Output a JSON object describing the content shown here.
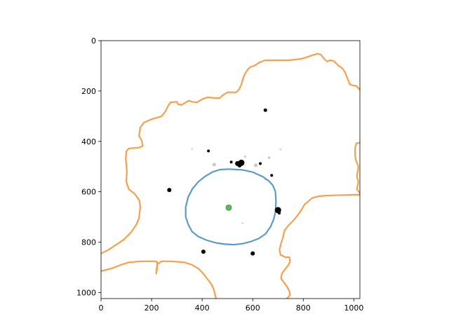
{
  "chart_data": {
    "type": "scatter",
    "title": "",
    "xlabel": "",
    "ylabel": "",
    "xlim": [
      0,
      1024
    ],
    "ylim": [
      1024,
      0
    ],
    "y_inverted": true,
    "xticks": [
      0,
      200,
      400,
      600,
      800,
      1000
    ],
    "yticks": [
      0,
      200,
      400,
      600,
      800,
      1000
    ],
    "grid": false,
    "legend": "none",
    "colors": {
      "outer_contour": "#f6a04d",
      "inner_contour": "#5a9bcc",
      "center_point": "#5cb85c",
      "blobs": "#000000"
    },
    "center_point": {
      "x": 505,
      "y": 663
    },
    "inner_contour": [
      [
        505,
        510
      ],
      [
        560,
        513
      ],
      [
        600,
        522
      ],
      [
        640,
        540
      ],
      [
        665,
        558
      ],
      [
        680,
        575
      ],
      [
        690,
        600
      ],
      [
        692,
        640
      ],
      [
        690,
        680
      ],
      [
        683,
        710
      ],
      [
        670,
        740
      ],
      [
        650,
        768
      ],
      [
        625,
        785
      ],
      [
        595,
        797
      ],
      [
        560,
        806
      ],
      [
        525,
        810
      ],
      [
        490,
        808
      ],
      [
        455,
        803
      ],
      [
        420,
        793
      ],
      [
        385,
        778
      ],
      [
        360,
        758
      ],
      [
        345,
        730
      ],
      [
        335,
        700
      ],
      [
        335,
        660
      ],
      [
        345,
        620
      ],
      [
        362,
        588
      ],
      [
        385,
        560
      ],
      [
        410,
        540
      ],
      [
        440,
        522
      ],
      [
        470,
        512
      ],
      [
        505,
        510
      ]
    ],
    "outer_contour_main": [
      [
        0,
        845
      ],
      [
        30,
        830
      ],
      [
        90,
        790
      ],
      [
        120,
        760
      ],
      [
        140,
        730
      ],
      [
        150,
        705
      ],
      [
        155,
        660
      ],
      [
        152,
        635
      ],
      [
        135,
        610
      ],
      [
        110,
        590
      ],
      [
        100,
        560
      ],
      [
        102,
        520
      ],
      [
        100,
        490
      ],
      [
        98,
        470
      ],
      [
        100,
        440
      ],
      [
        110,
        428
      ],
      [
        150,
        425
      ],
      [
        165,
        418
      ],
      [
        160,
        395
      ],
      [
        150,
        378
      ],
      [
        155,
        345
      ],
      [
        170,
        325
      ],
      [
        200,
        312
      ],
      [
        240,
        300
      ],
      [
        255,
        280
      ],
      [
        265,
        260
      ],
      [
        275,
        245
      ],
      [
        300,
        243
      ],
      [
        305,
        253
      ],
      [
        320,
        255
      ],
      [
        335,
        245
      ],
      [
        348,
        238
      ],
      [
        360,
        243
      ],
      [
        380,
        245
      ],
      [
        400,
        233
      ],
      [
        420,
        225
      ],
      [
        445,
        227
      ],
      [
        470,
        228
      ],
      [
        480,
        218
      ],
      [
        500,
        205
      ],
      [
        535,
        205
      ],
      [
        545,
        195
      ],
      [
        555,
        175
      ],
      [
        560,
        155
      ],
      [
        570,
        130
      ],
      [
        580,
        115
      ],
      [
        590,
        105
      ],
      [
        605,
        100
      ],
      [
        630,
        85
      ],
      [
        650,
        78
      ],
      [
        695,
        78
      ],
      [
        740,
        78
      ],
      [
        770,
        75
      ],
      [
        800,
        70
      ],
      [
        830,
        60
      ],
      [
        855,
        52
      ],
      [
        870,
        55
      ],
      [
        880,
        70
      ],
      [
        895,
        83
      ],
      [
        905,
        78
      ],
      [
        920,
        80
      ],
      [
        940,
        100
      ],
      [
        955,
        110
      ],
      [
        965,
        125
      ],
      [
        975,
        150
      ],
      [
        985,
        175
      ],
      [
        1010,
        180
      ],
      [
        1024,
        195
      ]
    ],
    "outer_contour_right": [
      [
        1024,
        405
      ],
      [
        1010,
        408
      ],
      [
        1005,
        425
      ],
      [
        1005,
        460
      ],
      [
        1010,
        480
      ],
      [
        1018,
        500
      ],
      [
        1012,
        540
      ],
      [
        1018,
        560
      ],
      [
        1012,
        590
      ],
      [
        1024,
        605
      ]
    ],
    "outer_contour_lower": [
      [
        1024,
        612
      ],
      [
        1000,
        612
      ],
      [
        960,
        613
      ],
      [
        920,
        614
      ],
      [
        880,
        616
      ],
      [
        860,
        618
      ],
      [
        835,
        625
      ],
      [
        820,
        638
      ],
      [
        805,
        650
      ],
      [
        795,
        668
      ],
      [
        780,
        690
      ],
      [
        760,
        715
      ],
      [
        740,
        735
      ],
      [
        725,
        755
      ],
      [
        720,
        780
      ],
      [
        712,
        805
      ],
      [
        706,
        830
      ],
      [
        710,
        850
      ],
      [
        730,
        860
      ],
      [
        745,
        860
      ],
      [
        748,
        875
      ],
      [
        742,
        890
      ],
      [
        730,
        905
      ],
      [
        715,
        925
      ],
      [
        712,
        945
      ],
      [
        735,
        975
      ],
      [
        745,
        995
      ],
      [
        748,
        1010
      ],
      [
        735,
        1024
      ]
    ],
    "outer_contour_bottom": [
      [
        0,
        915
      ],
      [
        40,
        905
      ],
      [
        80,
        890
      ],
      [
        110,
        880
      ],
      [
        160,
        876
      ],
      [
        210,
        876
      ],
      [
        222,
        878
      ],
      [
        222,
        905
      ],
      [
        218,
        925
      ],
      [
        222,
        888
      ],
      [
        240,
        876
      ],
      [
        275,
        876
      ],
      [
        330,
        880
      ],
      [
        360,
        890
      ],
      [
        385,
        905
      ],
      [
        405,
        925
      ],
      [
        420,
        945
      ],
      [
        435,
        965
      ],
      [
        445,
        985
      ],
      [
        450,
        1005
      ],
      [
        455,
        1024
      ]
    ],
    "blobs": [
      {
        "x": 650,
        "y": 276,
        "size": 2.5
      },
      {
        "x": 425,
        "y": 438,
        "size": 2.0
      },
      {
        "x": 515,
        "y": 482,
        "size": 2.0
      },
      {
        "x": 540,
        "y": 488,
        "size": 3.5
      },
      {
        "x": 555,
        "y": 485,
        "size": 4.5
      },
      {
        "x": 548,
        "y": 495,
        "size": 3.0
      },
      {
        "x": 630,
        "y": 488,
        "size": 2.0
      },
      {
        "x": 675,
        "y": 535,
        "size": 2.0
      },
      {
        "x": 270,
        "y": 593,
        "size": 3.0
      },
      {
        "x": 700,
        "y": 673,
        "size": 4.5
      },
      {
        "x": 705,
        "y": 685,
        "size": 2.0
      },
      {
        "x": 405,
        "y": 838,
        "size": 3.0
      },
      {
        "x": 600,
        "y": 845,
        "size": 3.0
      }
    ],
    "faint_blobs": [
      {
        "x": 448,
        "y": 492,
        "size": 2.5
      },
      {
        "x": 612,
        "y": 495,
        "size": 2.5
      },
      {
        "x": 570,
        "y": 460,
        "size": 1.5
      },
      {
        "x": 665,
        "y": 465,
        "size": 1.8
      },
      {
        "x": 360,
        "y": 430,
        "size": 1.2
      },
      {
        "x": 710,
        "y": 432,
        "size": 1.2
      },
      {
        "x": 560,
        "y": 725,
        "size": 1.2
      },
      {
        "x": 650,
        "y": 550,
        "size": 1.5
      }
    ]
  }
}
